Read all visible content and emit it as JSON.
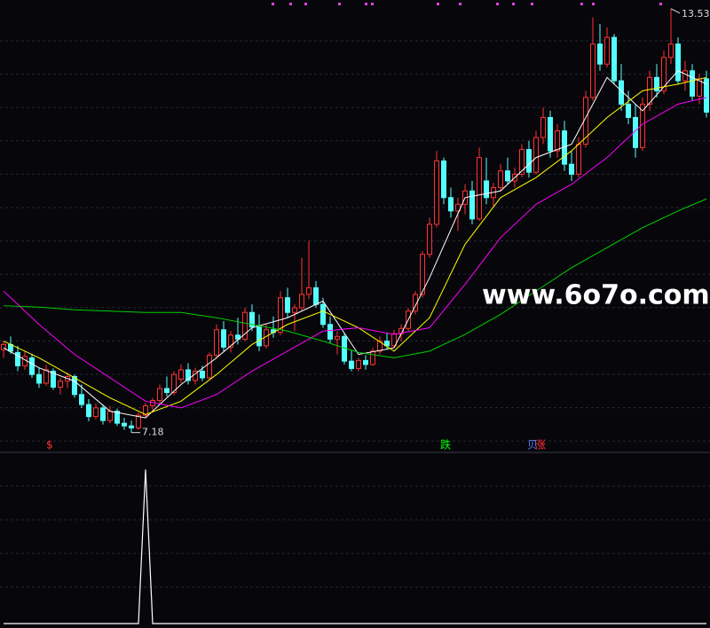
{
  "chart_data": {
    "type": "candlestick",
    "ylim": [
      6.91,
      13.66
    ],
    "up_color": "#ff3232",
    "down_color": "#54ffff",
    "ohlc": [
      [
        8.42,
        8.55,
        8.3,
        8.5
      ],
      [
        8.5,
        8.62,
        8.36,
        8.4
      ],
      [
        8.38,
        8.48,
        8.1,
        8.18
      ],
      [
        8.18,
        8.4,
        8.12,
        8.32
      ],
      [
        8.3,
        8.36,
        8.0,
        8.05
      ],
      [
        8.05,
        8.15,
        7.85,
        7.92
      ],
      [
        7.92,
        8.2,
        7.88,
        8.12
      ],
      [
        8.1,
        8.14,
        7.82,
        7.86
      ],
      [
        7.86,
        8.0,
        7.75,
        7.95
      ],
      [
        7.95,
        8.08,
        7.85,
        8.02
      ],
      [
        8.02,
        8.05,
        7.7,
        7.75
      ],
      [
        7.75,
        7.9,
        7.55,
        7.6
      ],
      [
        7.6,
        7.68,
        7.35,
        7.42
      ],
      [
        7.42,
        7.62,
        7.38,
        7.55
      ],
      [
        7.55,
        7.6,
        7.3,
        7.36
      ],
      [
        7.36,
        7.58,
        7.32,
        7.5
      ],
      [
        7.5,
        7.54,
        7.28,
        7.32
      ],
      [
        7.32,
        7.4,
        7.22,
        7.28
      ],
      [
        7.28,
        7.36,
        7.18,
        7.25
      ],
      [
        7.25,
        7.48,
        7.22,
        7.44
      ],
      [
        7.44,
        7.62,
        7.4,
        7.58
      ],
      [
        7.58,
        7.7,
        7.5,
        7.66
      ],
      [
        7.66,
        7.9,
        7.6,
        7.84
      ],
      [
        7.84,
        8.02,
        7.72,
        7.78
      ],
      [
        7.78,
        8.1,
        7.74,
        8.05
      ],
      [
        7.98,
        8.2,
        7.92,
        8.12
      ],
      [
        8.12,
        8.22,
        7.9,
        7.96
      ],
      [
        7.96,
        8.15,
        7.9,
        8.1
      ],
      [
        8.1,
        8.18,
        7.95,
        8.0
      ],
      [
        8.0,
        8.38,
        7.98,
        8.34
      ],
      [
        8.34,
        8.8,
        8.3,
        8.72
      ],
      [
        8.72,
        8.85,
        8.4,
        8.46
      ],
      [
        8.46,
        8.7,
        8.38,
        8.64
      ],
      [
        8.64,
        8.9,
        8.5,
        8.58
      ],
      [
        8.58,
        9.05,
        8.55,
        8.98
      ],
      [
        8.98,
        9.1,
        8.7,
        8.76
      ],
      [
        8.76,
        8.95,
        8.4,
        8.48
      ],
      [
        8.48,
        8.8,
        8.44,
        8.72
      ],
      [
        8.72,
        8.92,
        8.6,
        8.68
      ],
      [
        8.68,
        9.3,
        8.64,
        9.2
      ],
      [
        9.2,
        9.35,
        8.9,
        8.98
      ],
      [
        8.98,
        9.1,
        8.7,
        9.05
      ],
      [
        9.05,
        9.8,
        9.0,
        9.25
      ],
      [
        9.25,
        10.05,
        9.18,
        9.35
      ],
      [
        9.35,
        9.45,
        9.05,
        9.1
      ],
      [
        9.1,
        9.2,
        8.75,
        8.8
      ],
      [
        8.8,
        8.92,
        8.52,
        8.58
      ],
      [
        8.58,
        8.7,
        8.35,
        8.62
      ],
      [
        8.62,
        8.66,
        8.2,
        8.25
      ],
      [
        8.25,
        8.42,
        8.1,
        8.14
      ],
      [
        8.14,
        8.3,
        8.1,
        8.26
      ],
      [
        8.26,
        8.34,
        8.12,
        8.2
      ],
      [
        8.2,
        8.45,
        8.18,
        8.4
      ],
      [
        8.4,
        8.62,
        8.35,
        8.55
      ],
      [
        8.55,
        8.68,
        8.42,
        8.48
      ],
      [
        8.48,
        8.72,
        8.45,
        8.66
      ],
      [
        8.66,
        8.8,
        8.55,
        8.74
      ],
      [
        8.74,
        9.05,
        8.7,
        9.0
      ],
      [
        9.0,
        9.3,
        8.95,
        9.25
      ],
      [
        9.25,
        9.9,
        9.2,
        9.85
      ],
      [
        9.85,
        10.4,
        9.8,
        10.3
      ],
      [
        10.3,
        11.4,
        10.25,
        11.25
      ],
      [
        11.25,
        11.3,
        10.6,
        10.7
      ],
      [
        10.7,
        10.85,
        10.4,
        10.5
      ],
      [
        10.5,
        10.7,
        10.2,
        10.6
      ],
      [
        10.6,
        10.9,
        10.45,
        10.8
      ],
      [
        10.8,
        10.95,
        10.3,
        10.38
      ],
      [
        10.38,
        11.45,
        10.35,
        11.3
      ],
      [
        10.95,
        11.3,
        10.6,
        10.7
      ],
      [
        10.7,
        10.92,
        10.55,
        10.85
      ],
      [
        10.85,
        11.2,
        10.8,
        11.1
      ],
      [
        11.1,
        11.3,
        10.9,
        10.95
      ],
      [
        10.95,
        11.15,
        10.85,
        11.05
      ],
      [
        11.05,
        11.5,
        11.0,
        11.42
      ],
      [
        11.42,
        11.55,
        11.0,
        11.08
      ],
      [
        11.08,
        11.7,
        11.05,
        11.6
      ],
      [
        11.6,
        12.05,
        11.5,
        11.9
      ],
      [
        11.9,
        12.0,
        11.3,
        11.4
      ],
      [
        11.4,
        11.8,
        11.3,
        11.7
      ],
      [
        11.7,
        11.85,
        11.1,
        11.2
      ],
      [
        11.2,
        11.4,
        10.95,
        11.05
      ],
      [
        11.05,
        11.6,
        11.0,
        11.5
      ],
      [
        11.5,
        12.3,
        11.45,
        12.2
      ],
      [
        12.2,
        13.4,
        12.15,
        13.0
      ],
      [
        13.0,
        13.3,
        12.6,
        12.7
      ],
      [
        12.7,
        13.25,
        12.65,
        13.1
      ],
      [
        13.1,
        13.15,
        12.4,
        12.45
      ],
      [
        12.45,
        12.7,
        12.0,
        12.1
      ],
      [
        12.1,
        12.3,
        11.8,
        11.9
      ],
      [
        11.9,
        12.1,
        11.3,
        11.45
      ],
      [
        11.45,
        12.2,
        11.4,
        12.1
      ],
      [
        12.1,
        12.6,
        12.0,
        12.5
      ],
      [
        12.5,
        12.7,
        12.2,
        12.3
      ],
      [
        12.3,
        12.9,
        12.25,
        12.8
      ],
      [
        12.8,
        13.53,
        12.7,
        13.0
      ],
      [
        13.0,
        13.1,
        12.4,
        12.45
      ],
      [
        12.45,
        12.75,
        12.3,
        12.6
      ],
      [
        12.6,
        12.7,
        12.15,
        12.22
      ],
      [
        12.22,
        12.55,
        12.1,
        12.48
      ],
      [
        12.48,
        12.6,
        11.9,
        11.98
      ]
    ],
    "ma_x": [
      0,
      5,
      10,
      15,
      20,
      25,
      30,
      35,
      40,
      45,
      50,
      55,
      60,
      65,
      70,
      75,
      80,
      85,
      90,
      95,
      99
    ],
    "lines": [
      {
        "color": "#ffffff",
        "values": [
          8.45,
          8.15,
          7.95,
          7.5,
          7.4,
          7.9,
          8.3,
          8.75,
          8.9,
          9.15,
          8.35,
          8.45,
          9.5,
          10.7,
          10.8,
          11.3,
          11.5,
          12.5,
          12.0,
          12.6,
          12.4
        ]
      },
      {
        "color": "#ffff00",
        "values": [
          8.55,
          8.3,
          8.0,
          7.7,
          7.45,
          7.65,
          8.05,
          8.5,
          8.8,
          9.0,
          8.75,
          8.4,
          8.9,
          10.0,
          10.7,
          11.0,
          11.4,
          11.9,
          12.3,
          12.4,
          12.5
        ]
      },
      {
        "color": "#ff00ff",
        "values": [
          9.3,
          8.8,
          8.35,
          8.0,
          7.65,
          7.55,
          7.75,
          8.1,
          8.4,
          8.7,
          8.75,
          8.65,
          8.75,
          9.4,
          10.1,
          10.6,
          10.9,
          11.3,
          11.8,
          12.1,
          12.2
        ]
      },
      {
        "color": "#00d000",
        "values": [
          9.08,
          9.06,
          9.02,
          9.0,
          8.98,
          8.98,
          8.9,
          8.8,
          8.7,
          8.55,
          8.38,
          8.3,
          8.4,
          8.65,
          8.95,
          9.3,
          9.65,
          9.95,
          10.25,
          10.5,
          10.68
        ]
      }
    ],
    "high_label": "13.53",
    "low_label": "7.18",
    "signals": [
      {
        "label": "$",
        "color": "#ff3232"
      },
      {
        "label": "跌",
        "color": "#00ff00"
      },
      {
        "label": "贝",
        "color": "#5a7cff"
      },
      {
        "label": "涨",
        "color": "#ff3232"
      }
    ],
    "watermark": "www.6o7o.com",
    "indicator": {
      "x": [
        0,
        19,
        20,
        21,
        99
      ],
      "values": [
        0,
        0,
        1,
        0,
        0
      ],
      "ylim": [
        0,
        1.1
      ],
      "color": "#ffffff"
    }
  }
}
